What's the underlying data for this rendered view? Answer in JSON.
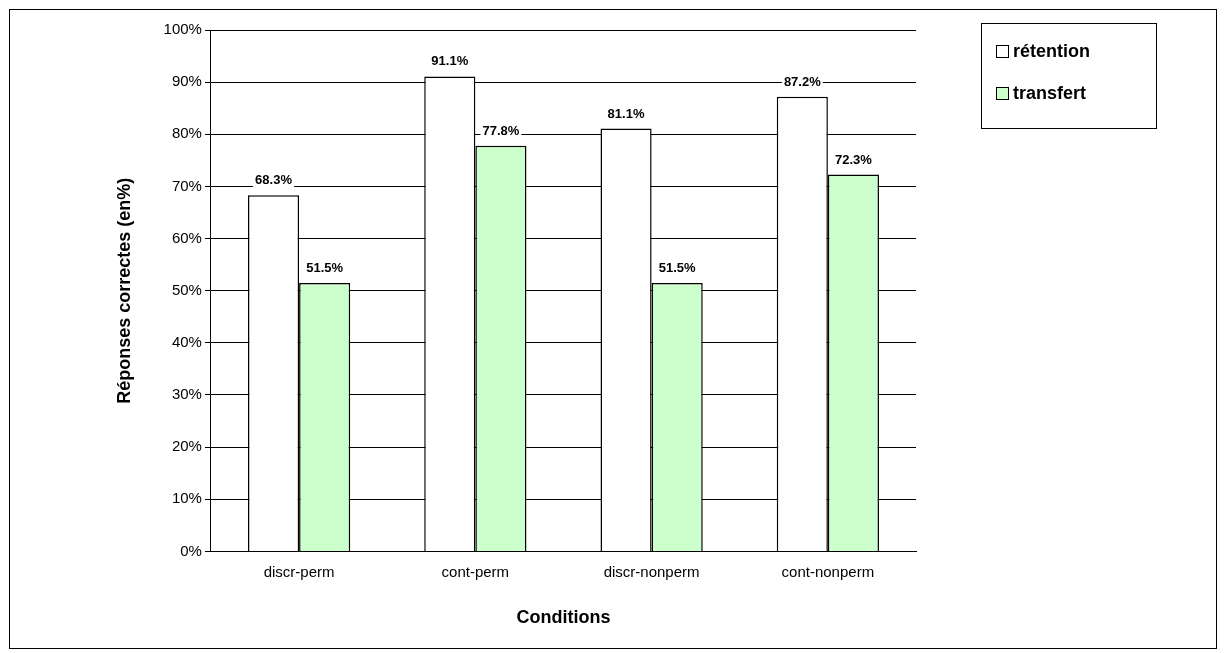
{
  "chart_data": {
    "type": "bar",
    "xlabel": "Conditions",
    "ylabel": "Réponses correctes (en%)",
    "categories": [
      "discr-perm",
      "cont-perm",
      "discr-nonperm",
      "cont-nonperm"
    ],
    "series": [
      {
        "name": "rétention",
        "color": "#ffffff",
        "values": [
          68.3,
          91.1,
          81.1,
          87.2
        ],
        "value_labels": [
          "68.3%",
          "91.1%",
          "81.1%",
          "87.2%"
        ]
      },
      {
        "name": "transfert",
        "color": "#ccffcc",
        "values": [
          51.5,
          77.8,
          51.5,
          72.3
        ],
        "value_labels": [
          "51.5%",
          "77.8%",
          "51.5%",
          "72.3%"
        ]
      }
    ],
    "ylim": [
      0,
      100
    ],
    "yticks": [
      {
        "value": 0,
        "label": "0%"
      },
      {
        "value": 10,
        "label": "10%"
      },
      {
        "value": 20,
        "label": "20%"
      },
      {
        "value": 30,
        "label": "30%"
      },
      {
        "value": 40,
        "label": "40%"
      },
      {
        "value": 50,
        "label": "50%"
      },
      {
        "value": 60,
        "label": "60%"
      },
      {
        "value": 70,
        "label": "70%"
      },
      {
        "value": 80,
        "label": "80%"
      },
      {
        "value": 90,
        "label": "90%"
      },
      {
        "value": 100,
        "label": "100%"
      }
    ],
    "grid": "y",
    "legend": "top right"
  }
}
